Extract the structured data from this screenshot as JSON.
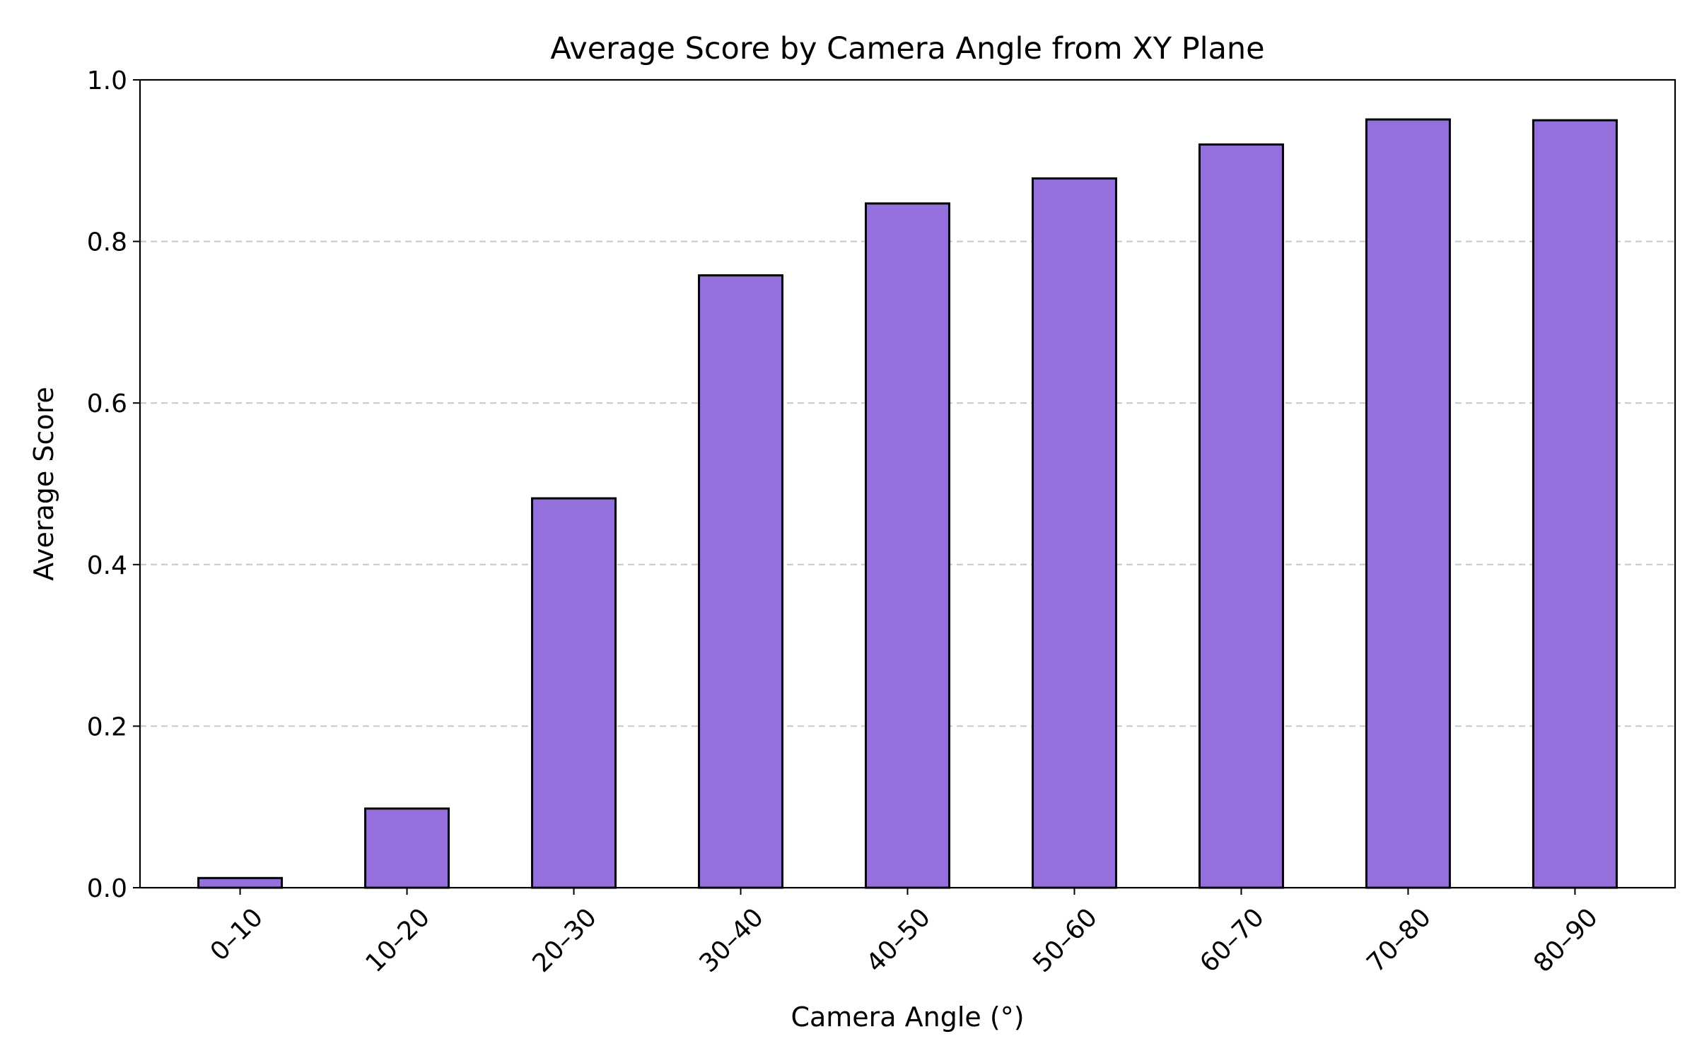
{
  "chart_data": {
    "type": "bar",
    "title": "Average Score by Camera Angle from XY Plane",
    "xlabel": "Camera Angle (°)",
    "ylabel": "Average Score",
    "categories": [
      "0–10",
      "10–20",
      "20–30",
      "30–40",
      "40–50",
      "50–60",
      "60–70",
      "70–80",
      "80–90"
    ],
    "values": [
      0.012,
      0.098,
      0.482,
      0.758,
      0.847,
      0.878,
      0.92,
      0.951,
      0.95
    ],
    "ylim": [
      0,
      1.0
    ],
    "yticks": [
      0.0,
      0.2,
      0.4,
      0.6,
      0.8,
      1.0
    ],
    "ytick_labels": [
      "0.0",
      "0.2",
      "0.4",
      "0.6",
      "0.8",
      "1.0"
    ],
    "grid": "y-dashed",
    "legend": "none",
    "colors": {
      "bar_fill": "#9370db",
      "bar_edge": "#000000",
      "grid": "#c8c8c8"
    }
  }
}
